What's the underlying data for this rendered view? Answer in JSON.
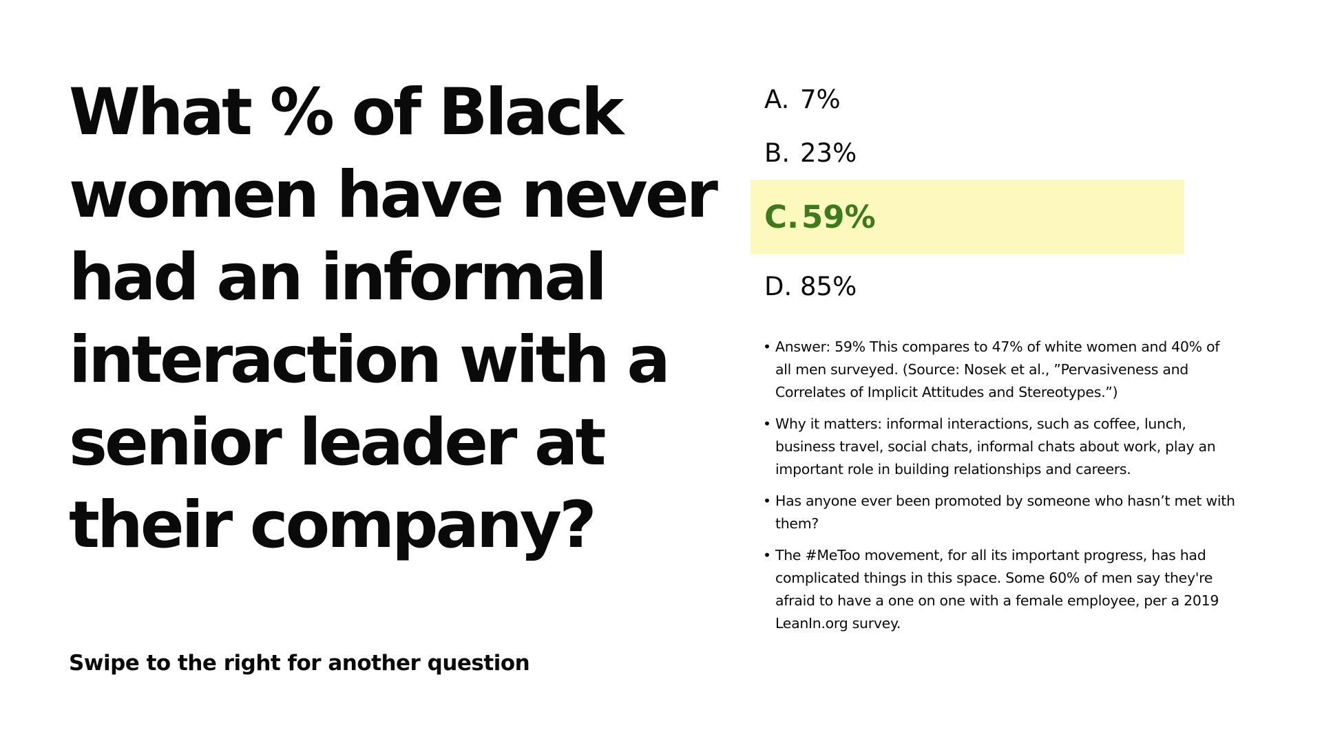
{
  "question": "What % of Black women have never had an informal interaction with a senior leader at their company?",
  "options": [
    {
      "letter": "A.",
      "value": "7%",
      "correct": false
    },
    {
      "letter": "B.",
      "value": "23%",
      "correct": false
    },
    {
      "letter": "C.",
      "value": "59%",
      "correct": true
    },
    {
      "letter": "D.",
      "value": "85%",
      "correct": false
    }
  ],
  "notes": [
    "Answer: 59% This compares to 47% of white women and 40% of all men surveyed. (Source: Nosek et al., ”Pervasiveness and Correlates of Implicit Attitudes and Stereotypes.”)",
    "Why it matters: informal interactions, such as coffee, lunch, business travel, social chats, informal chats about work, play an important role in building relationships and careers.",
    "Has anyone ever been promoted by someone who hasn’t met with them?",
    "The #MeToo movement, for all its important progress, has had complicated things in this space. Some 60% of men say they're afraid to have a one on one with a female employee, per a 2019 LeanIn.org survey."
  ],
  "bullet": "•",
  "footer": "Swipe to the right for another question",
  "colors": {
    "highlight_bg": "#fdf9be",
    "correct_text": "#3e7a1c",
    "text": "#0a0a0a"
  }
}
